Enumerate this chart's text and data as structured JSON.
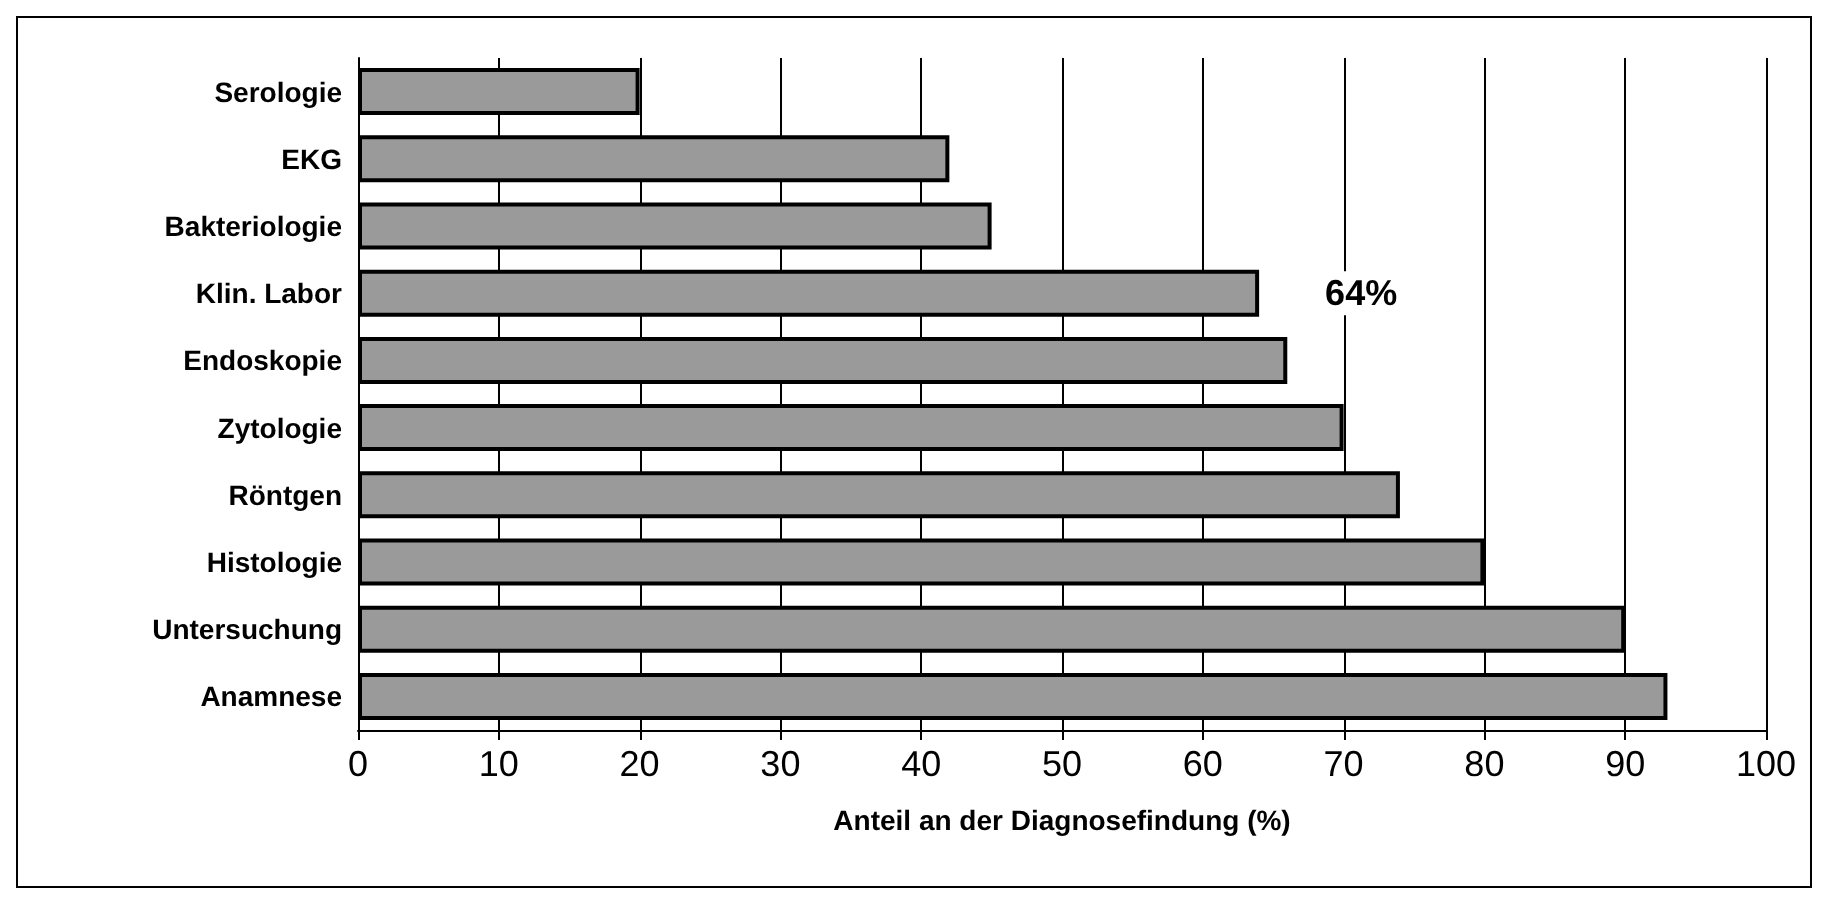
{
  "chart_data": {
    "type": "bar",
    "orientation": "horizontal",
    "xlabel": "Anteil an der Diagnosefindung (%)",
    "categories": [
      "Serologie",
      "EKG",
      "Bakteriologie",
      "Klin. Labor",
      "Endoskopie",
      "Zytologie",
      "Röntgen",
      "Histologie",
      "Untersuchung",
      "Anamnese"
    ],
    "values": [
      20,
      42,
      45,
      64,
      66,
      70,
      74,
      80,
      90,
      93
    ],
    "value_labels": [
      null,
      null,
      null,
      "64%",
      null,
      null,
      null,
      null,
      null,
      null
    ],
    "color": "#9a9a9a",
    "xlim": [
      0,
      100
    ],
    "xticks": [
      0,
      10,
      20,
      30,
      40,
      50,
      60,
      70,
      80,
      90,
      100
    ],
    "grid": "x"
  }
}
